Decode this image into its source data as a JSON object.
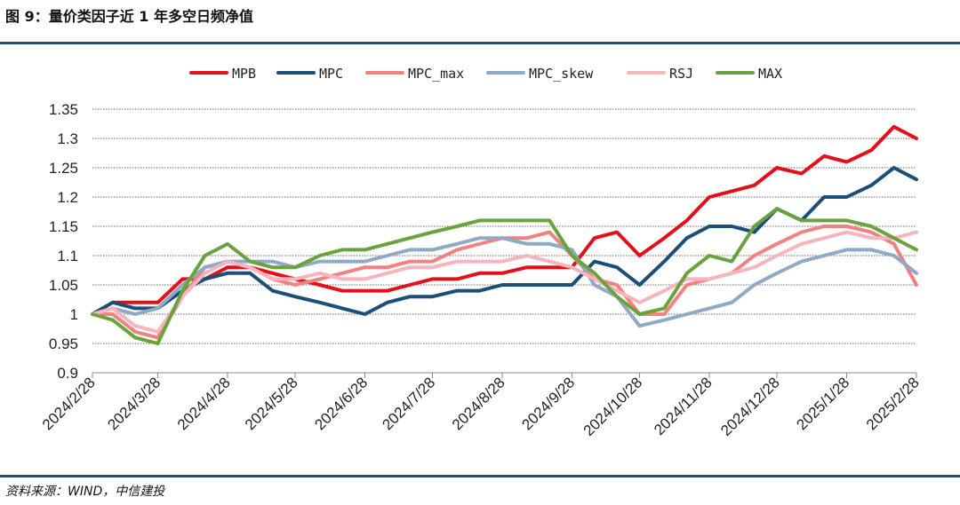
{
  "figure_title": "图 9：量价类因子近 1 年多空日频净值",
  "source_note": "资料来源：WIND，中信建投",
  "colors": {
    "rule": "#1f4e79",
    "grid": "#666666",
    "MPB": "#e3101b",
    "MPC": "#1b4f7a",
    "MPC_max": "#f28282",
    "MPC_skew": "#8faac4",
    "RSJ": "#f7b4bc",
    "MAX": "#6aa23e"
  },
  "chart_data": {
    "type": "line",
    "title": "",
    "xlabel": "",
    "ylabel": "",
    "ylim": [
      0.9,
      1.35
    ],
    "yticks": [
      "1.35",
      "1.3",
      "1.25",
      "1.2",
      "1.15",
      "1.1",
      "1.05",
      "1",
      "0.95",
      "0.9"
    ],
    "x_ticks": [
      "2024/2/28",
      "2024/3/28",
      "2024/4/28",
      "2024/5/28",
      "2024/6/28",
      "2024/7/28",
      "2024/8/28",
      "2024/9/28",
      "2024/10/28",
      "2024/11/28",
      "2024/12/28",
      "2025/1/28",
      "2025/2/28"
    ],
    "grid": "horizontal dashed",
    "legend_position": "top",
    "x": [
      "2024/2/28",
      "2024/3/8",
      "2024/3/18",
      "2024/3/28",
      "2024/4/8",
      "2024/4/18",
      "2024/4/28",
      "2024/5/8",
      "2024/5/18",
      "2024/5/28",
      "2024/6/8",
      "2024/6/18",
      "2024/6/28",
      "2024/7/8",
      "2024/7/18",
      "2024/7/28",
      "2024/8/8",
      "2024/8/18",
      "2024/8/28",
      "2024/9/8",
      "2024/9/18",
      "2024/9/28",
      "2024/10/8",
      "2024/10/18",
      "2024/10/28",
      "2024/11/8",
      "2024/11/18",
      "2024/11/28",
      "2024/12/8",
      "2024/12/18",
      "2024/12/28",
      "2025/1/8",
      "2025/1/18",
      "2025/1/28",
      "2025/2/8",
      "2025/2/18",
      "2025/2/28"
    ],
    "series": [
      {
        "name": "MPB",
        "values": [
          1.0,
          1.02,
          1.02,
          1.02,
          1.06,
          1.06,
          1.08,
          1.08,
          1.07,
          1.06,
          1.05,
          1.04,
          1.04,
          1.04,
          1.05,
          1.06,
          1.06,
          1.07,
          1.07,
          1.08,
          1.08,
          1.08,
          1.13,
          1.14,
          1.1,
          1.13,
          1.16,
          1.2,
          1.21,
          1.22,
          1.25,
          1.24,
          1.27,
          1.26,
          1.28,
          1.32,
          1.3
        ]
      },
      {
        "name": "MPC",
        "values": [
          1.0,
          1.02,
          1.01,
          1.01,
          1.04,
          1.06,
          1.07,
          1.07,
          1.04,
          1.03,
          1.02,
          1.01,
          1.0,
          1.02,
          1.03,
          1.03,
          1.04,
          1.04,
          1.05,
          1.05,
          1.05,
          1.05,
          1.09,
          1.08,
          1.05,
          1.09,
          1.13,
          1.15,
          1.15,
          1.14,
          1.18,
          1.16,
          1.2,
          1.2,
          1.22,
          1.25,
          1.23
        ]
      },
      {
        "name": "MPC_max",
        "values": [
          1.0,
          1.0,
          0.97,
          0.96,
          1.03,
          1.08,
          1.09,
          1.08,
          1.06,
          1.05,
          1.06,
          1.07,
          1.08,
          1.08,
          1.09,
          1.09,
          1.11,
          1.12,
          1.13,
          1.13,
          1.14,
          1.1,
          1.06,
          1.05,
          1.0,
          1.0,
          1.05,
          1.06,
          1.07,
          1.1,
          1.12,
          1.14,
          1.15,
          1.15,
          1.14,
          1.12,
          1.05
        ]
      },
      {
        "name": "MPC_skew",
        "values": [
          1.0,
          1.01,
          1.0,
          1.01,
          1.05,
          1.08,
          1.09,
          1.09,
          1.09,
          1.08,
          1.09,
          1.09,
          1.09,
          1.1,
          1.11,
          1.11,
          1.12,
          1.13,
          1.13,
          1.12,
          1.12,
          1.11,
          1.05,
          1.03,
          0.98,
          0.99,
          1.0,
          1.01,
          1.02,
          1.05,
          1.07,
          1.09,
          1.1,
          1.11,
          1.11,
          1.1,
          1.07
        ]
      },
      {
        "name": "RSJ",
        "values": [
          1.0,
          1.01,
          0.98,
          0.97,
          1.03,
          1.07,
          1.09,
          1.08,
          1.06,
          1.06,
          1.07,
          1.06,
          1.06,
          1.07,
          1.08,
          1.08,
          1.09,
          1.09,
          1.09,
          1.1,
          1.09,
          1.08,
          1.06,
          1.04,
          1.02,
          1.04,
          1.06,
          1.06,
          1.07,
          1.08,
          1.1,
          1.12,
          1.13,
          1.14,
          1.13,
          1.13,
          1.14
        ]
      },
      {
        "name": "MAX",
        "values": [
          1.0,
          0.99,
          0.96,
          0.95,
          1.04,
          1.1,
          1.12,
          1.09,
          1.08,
          1.08,
          1.1,
          1.11,
          1.11,
          1.12,
          1.13,
          1.14,
          1.15,
          1.16,
          1.16,
          1.16,
          1.16,
          1.1,
          1.07,
          1.03,
          1.0,
          1.01,
          1.07,
          1.1,
          1.09,
          1.15,
          1.18,
          1.16,
          1.16,
          1.16,
          1.15,
          1.13,
          1.11
        ]
      }
    ]
  }
}
